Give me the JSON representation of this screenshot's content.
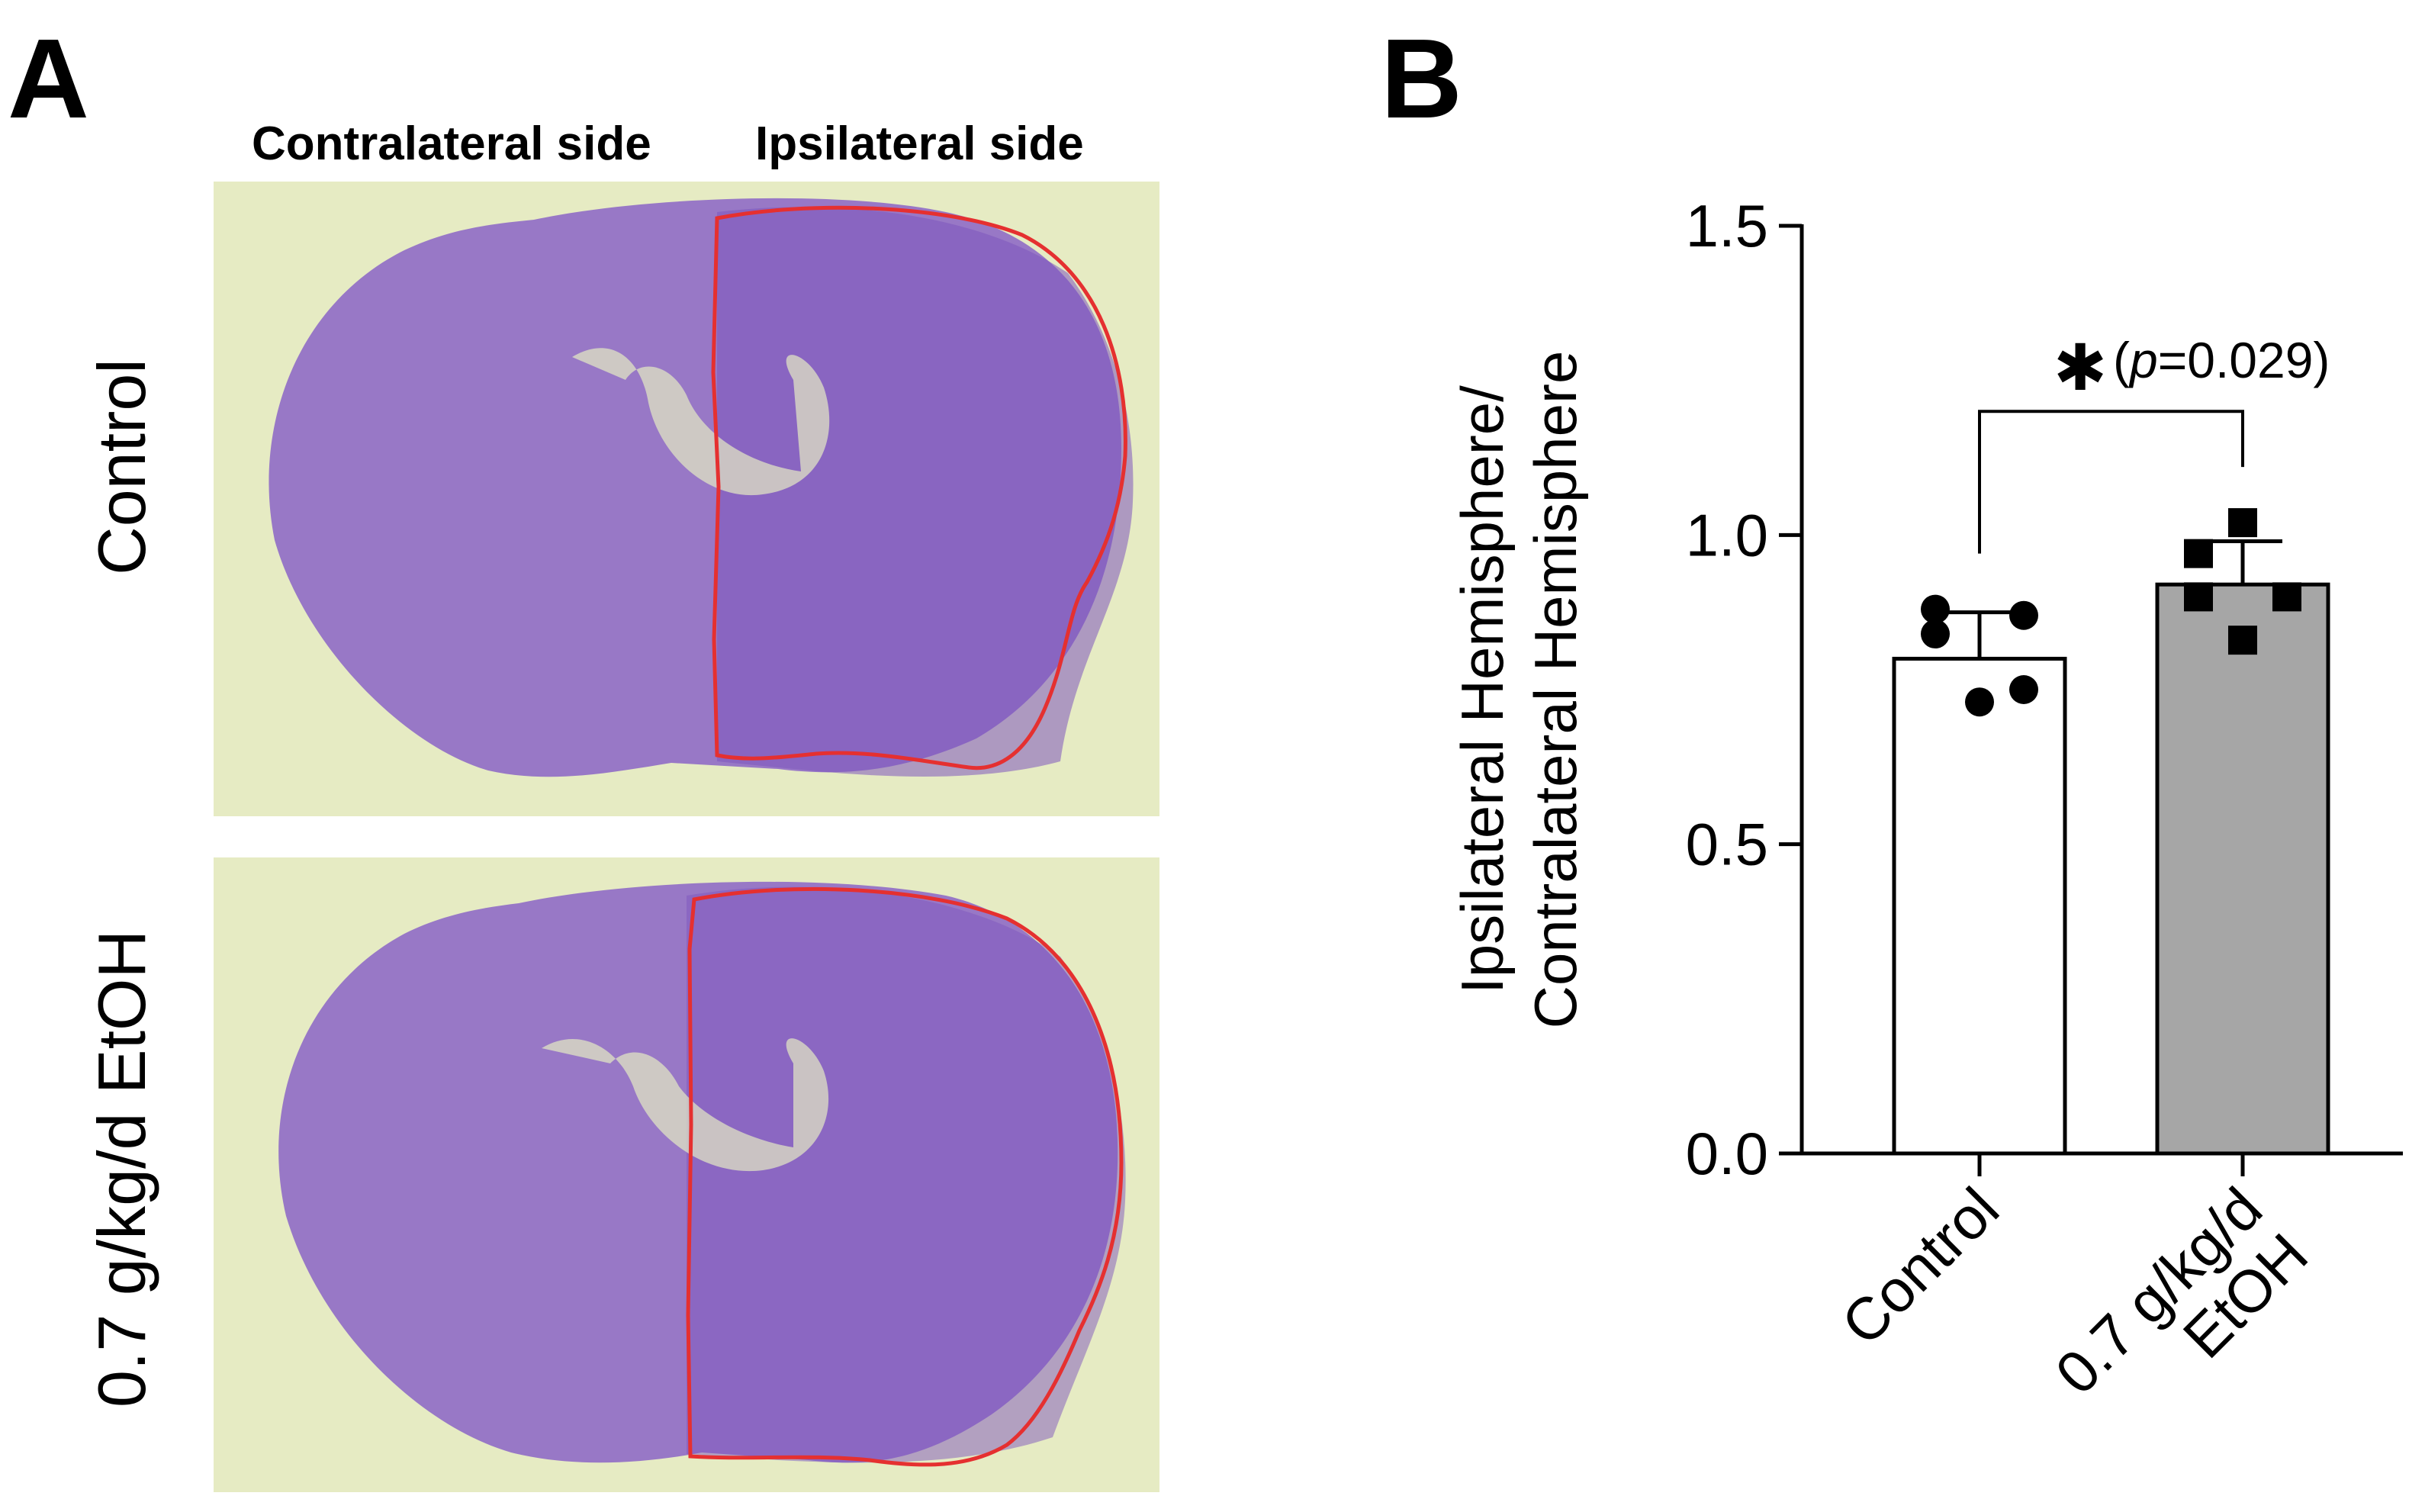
{
  "panels": {
    "a_label": "A",
    "b_label": "B"
  },
  "micrographs": {
    "column_headers": [
      "Contralateral side",
      "Ipsilateral side"
    ],
    "rows": [
      "Control",
      "0.7 g/kg/d EtOH"
    ],
    "colors": {
      "stain": "#8f6bc6",
      "background": "#e6ebc3",
      "outline": "#e53030"
    }
  },
  "chart_data": {
    "type": "bar",
    "categories": [
      "Control",
      "0.7 g/kg/d EtOH"
    ],
    "category_label_lines": [
      [
        "Control"
      ],
      [
        "0.7 g/kg/d",
        "EtOH"
      ]
    ],
    "values": [
      0.8,
      0.92
    ],
    "error_sd": [
      0.075,
      0.07
    ],
    "bar_colors": [
      "#ffffff",
      "#a6a6a6"
    ],
    "points": [
      {
        "marker": "circle",
        "values": [
          0.88,
          0.87,
          0.84,
          0.75,
          0.73
        ]
      },
      {
        "marker": "square",
        "values": [
          1.02,
          0.97,
          0.9,
          0.9,
          0.83
        ]
      }
    ],
    "ylabel_lines": [
      "Ipsilateral Hemisphere/",
      "Contralateral Hemisphere"
    ],
    "ylim": [
      0,
      1.5
    ],
    "yticks": [
      {
        "value": 0.0,
        "label": "0.0"
      },
      {
        "value": 0.5,
        "label": "0.5"
      },
      {
        "value": 1.0,
        "label": "1.0"
      },
      {
        "value": 1.5,
        "label": "1.5"
      }
    ],
    "annotation": {
      "star": "✱",
      "prefix": "(",
      "p": "p",
      "rest": "=0.029)"
    },
    "significance_bracket_y": 1.2,
    "grid": false
  }
}
